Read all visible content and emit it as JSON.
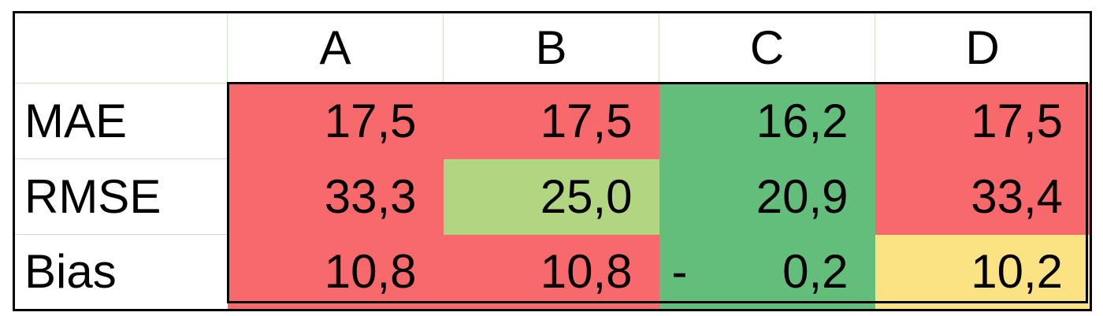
{
  "colors": {
    "red": "#f8696b",
    "light_green": "#b1d580",
    "green": "#63be7b",
    "yellow": "#fbe383"
  },
  "columns": [
    "A",
    "B",
    "C",
    "D"
  ],
  "rows": [
    {
      "label": "MAE",
      "cells": [
        {
          "value": "17,5",
          "color": "red"
        },
        {
          "value": "17,5",
          "color": "red"
        },
        {
          "value": "16,2",
          "color": "green"
        },
        {
          "value": "17,5",
          "color": "red"
        }
      ]
    },
    {
      "label": "RMSE",
      "cells": [
        {
          "value": "33,3",
          "color": "red"
        },
        {
          "value": "25,0",
          "color": "light_green"
        },
        {
          "value": "20,9",
          "color": "green"
        },
        {
          "value": "33,4",
          "color": "red"
        }
      ]
    },
    {
      "label": "Bias",
      "cells": [
        {
          "value": "10,8",
          "color": "red"
        },
        {
          "value": "10,8",
          "color": "red"
        },
        {
          "value": "0,2",
          "sign": "-",
          "color": "green"
        },
        {
          "value": "10,2",
          "color": "yellow"
        }
      ]
    }
  ]
}
